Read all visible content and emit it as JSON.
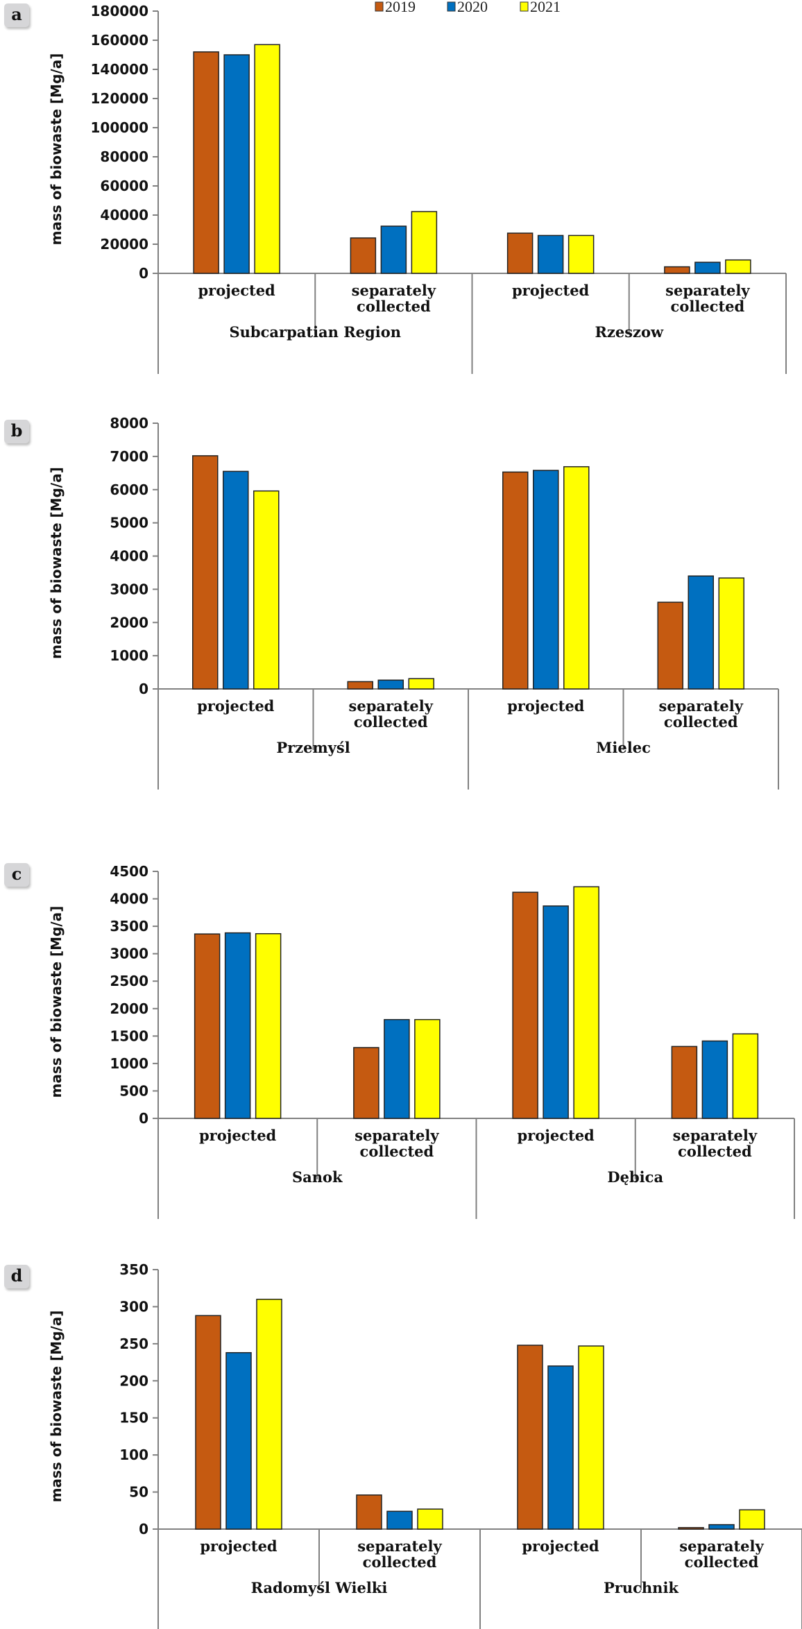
{
  "legend": [
    {
      "label": "2019",
      "color": "#C55A11"
    },
    {
      "label": "2020",
      "color": "#0070C0"
    },
    {
      "label": "2021",
      "color": "#FFFF00"
    }
  ],
  "chart_data": [
    {
      "panel": "a",
      "type": "bar",
      "ylabel": "mass of biowaste [Mg/a]",
      "ylim": [
        0,
        180000
      ],
      "yticks": [
        0,
        20000,
        40000,
        60000,
        80000,
        100000,
        120000,
        140000,
        160000,
        180000
      ],
      "groups": [
        {
          "name": "Subcarpatian Region",
          "categories": [
            {
              "label": [
                "projected"
              ],
              "values": [
                152000,
                150000,
                157000
              ]
            },
            {
              "label": [
                "separately",
                "collected"
              ],
              "values": [
                24300,
                32400,
                42400
              ]
            }
          ]
        },
        {
          "name": "Rzeszow",
          "categories": [
            {
              "label": [
                "projected"
              ],
              "values": [
                27600,
                26000,
                26000
              ]
            },
            {
              "label": [
                "separately",
                "collected"
              ],
              "values": [
                4500,
                7600,
                9200
              ]
            }
          ]
        }
      ],
      "series": [
        "2019",
        "2020",
        "2021"
      ],
      "legend_position": "top"
    },
    {
      "panel": "b",
      "type": "bar",
      "ylabel": "mass of biowaste [Mg/a]",
      "ylim": [
        0,
        8000
      ],
      "yticks": [
        0,
        1000,
        2000,
        3000,
        4000,
        5000,
        6000,
        7000,
        8000
      ],
      "groups": [
        {
          "name": "Przemyśl",
          "categories": [
            {
              "label": [
                "projected"
              ],
              "values": [
                7020,
                6550,
                5960
              ]
            },
            {
              "label": [
                "separately",
                "collected"
              ],
              "values": [
                220,
                265,
                310
              ]
            }
          ]
        },
        {
          "name": "Mielec",
          "categories": [
            {
              "label": [
                "projected"
              ],
              "values": [
                6530,
                6580,
                6690
              ]
            },
            {
              "label": [
                "separately",
                "collected"
              ],
              "values": [
                2610,
                3400,
                3340
              ]
            }
          ]
        }
      ],
      "series": [
        "2019",
        "2020",
        "2021"
      ]
    },
    {
      "panel": "c",
      "type": "bar",
      "ylabel": "mass of biowaste [Mg/a]",
      "ylim": [
        0,
        4500
      ],
      "yticks": [
        0,
        500,
        1000,
        1500,
        2000,
        2500,
        3000,
        3500,
        4000,
        4500
      ],
      "groups": [
        {
          "name": "Sanok",
          "categories": [
            {
              "label": [
                "projected"
              ],
              "values": [
                3360,
                3380,
                3365
              ]
            },
            {
              "label": [
                "separately",
                "collected"
              ],
              "values": [
                1290,
                1800,
                1800
              ]
            }
          ]
        },
        {
          "name": "Dębica",
          "categories": [
            {
              "label": [
                "projected"
              ],
              "values": [
                4120,
                3870,
                4220
              ]
            },
            {
              "label": [
                "separately",
                "collected"
              ],
              "values": [
                1310,
                1410,
                1540
              ]
            }
          ]
        }
      ],
      "series": [
        "2019",
        "2020",
        "2021"
      ]
    },
    {
      "panel": "d",
      "type": "bar",
      "ylabel": "mass of biowaste [Mg/a]",
      "ylim": [
        0,
        350
      ],
      "yticks": [
        0,
        50,
        100,
        150,
        200,
        250,
        300,
        350
      ],
      "groups": [
        {
          "name": "Radomyśl Wielki",
          "categories": [
            {
              "label": [
                "projected"
              ],
              "values": [
                288,
                238,
                310
              ]
            },
            {
              "label": [
                "separately",
                "collected"
              ],
              "values": [
                46,
                24,
                27
              ]
            }
          ]
        },
        {
          "name": "Pruchnik",
          "categories": [
            {
              "label": [
                "projected"
              ],
              "values": [
                248,
                220,
                247
              ]
            },
            {
              "label": [
                "separately",
                "collected"
              ],
              "values": [
                2,
                6,
                26
              ]
            }
          ]
        }
      ],
      "series": [
        "2019",
        "2020",
        "2021"
      ]
    }
  ]
}
